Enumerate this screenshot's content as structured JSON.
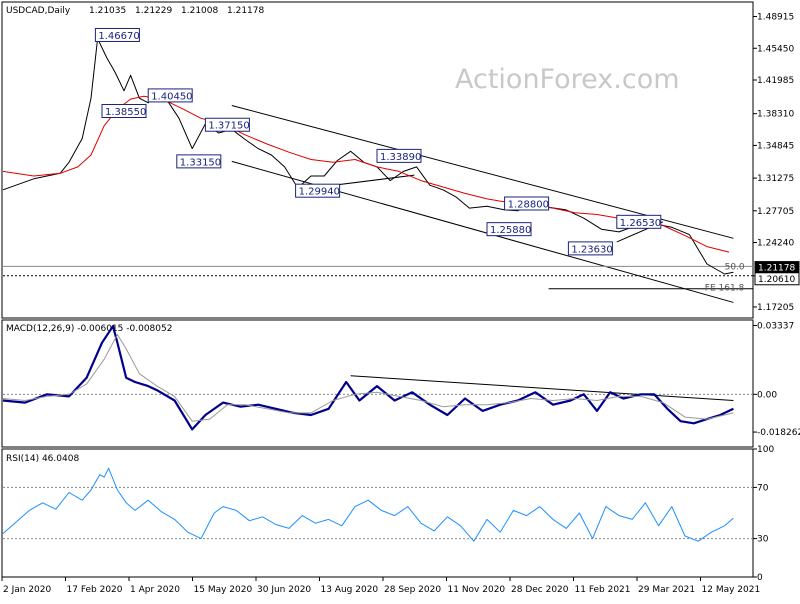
{
  "chart_data": [
    {
      "type": "line",
      "title": "USDCAD,Daily",
      "ohlc": [
        "1.21035",
        "1.21229",
        "1.21008",
        "1.21178"
      ],
      "watermark": "ActionForex.com",
      "x_ticks": [
        "2 Jan 2020",
        "17 Feb 2020",
        "1 Apr 2020",
        "15 May 2020",
        "30 Jun 2020",
        "13 Aug 2020",
        "28 Sep 2020",
        "11 Nov 2020",
        "28 Dec 2020",
        "11 Feb 2021",
        "29 Mar 2021",
        "12 May 2021"
      ],
      "y_ticks": [
        "1.48915",
        "1.45450",
        "1.41985",
        "1.38310",
        "1.34845",
        "1.31275",
        "1.27705",
        "1.24240",
        "1.20610",
        "1.17205"
      ],
      "ylim": [
        1.16,
        1.505
      ],
      "series": [
        {
          "name": "",
          "color": "#000000",
          "x": [
            0,
            14,
            26,
            30,
            36,
            40,
            43,
            47,
            51,
            55,
            58,
            62,
            66,
            70,
            74,
            80,
            86,
            92,
            98,
            104,
            110,
            116,
            122,
            128,
            134,
            140,
            146,
            152,
            158,
            164,
            170,
            176,
            182,
            188,
            194,
            200,
            206,
            212,
            220,
            228,
            234,
            240,
            248,
            256,
            264,
            272,
            280,
            288,
            296,
            304,
            312,
            320,
            328,
            332
          ],
          "y": [
            1.3,
            1.312,
            1.318,
            1.33,
            1.356,
            1.4,
            1.465,
            1.445,
            1.428,
            1.408,
            1.425,
            1.4,
            1.395,
            1.41,
            1.4,
            1.378,
            1.345,
            1.372,
            1.362,
            1.366,
            1.355,
            1.345,
            1.338,
            1.325,
            1.302,
            1.315,
            1.315,
            1.332,
            1.342,
            1.33,
            1.325,
            1.31,
            1.32,
            1.325,
            1.305,
            1.3,
            1.292,
            1.28,
            1.282,
            1.278,
            1.277,
            1.286,
            1.281,
            1.278,
            1.269,
            1.257,
            1.254,
            1.261,
            1.263,
            1.259,
            1.251,
            1.219,
            1.208,
            1.21
          ]
        },
        {
          "name": "",
          "color": "#e00000",
          "x": [
            0,
            14,
            26,
            34,
            40,
            46,
            52,
            58,
            64,
            70,
            76,
            82,
            90,
            100,
            110,
            120,
            130,
            140,
            150,
            160,
            170,
            180,
            190,
            200,
            210,
            220,
            230,
            240,
            250,
            260,
            270,
            280,
            290,
            300,
            310,
            320,
            330
          ],
          "y": [
            1.32,
            1.315,
            1.318,
            1.325,
            1.338,
            1.37,
            1.388,
            1.399,
            1.402,
            1.4,
            1.395,
            1.388,
            1.378,
            1.372,
            1.36,
            1.35,
            1.341,
            1.333,
            1.33,
            1.333,
            1.325,
            1.32,
            1.31,
            1.303,
            1.296,
            1.29,
            1.286,
            1.283,
            1.28,
            1.275,
            1.273,
            1.269,
            1.268,
            1.261,
            1.25,
            1.238,
            1.232
          ]
        }
      ],
      "trendlines": [
        {
          "x": [
            104,
            332
          ],
          "y": [
            1.392,
            1.247
          ]
        },
        {
          "x": [
            104,
            332
          ],
          "y": [
            1.331,
            1.177
          ]
        },
        {
          "x": [
            134,
            187
          ],
          "y": [
            1.3,
            1.316
          ]
        },
        {
          "x": [
            170,
            187
          ],
          "y": [
            1.343,
            1.339
          ]
        },
        {
          "x": [
            279,
            300
          ],
          "y": [
            1.243,
            1.265
          ]
        }
      ],
      "hlines": [
        {
          "y": 1.2163,
          "style": "solid",
          "color": "#888888"
        },
        {
          "y": 1.2061,
          "style": "dotted",
          "color": "#000000"
        },
        {
          "y": 1.192,
          "style": "solid",
          "color": "#000000",
          "x_from": 248
        }
      ],
      "level_labels": [
        {
          "text": "1.46670",
          "x": 42,
          "y": 1.469
        },
        {
          "text": "1.40450",
          "x": 66,
          "y": 1.403
        },
        {
          "text": "1.38550",
          "x": 45,
          "y": 1.386
        },
        {
          "text": "1.37150",
          "x": 92,
          "y": 1.371
        },
        {
          "text": "1.33150",
          "x": 79,
          "y": 1.331
        },
        {
          "text": "1.33890",
          "x": 170,
          "y": 1.337
        },
        {
          "text": "1.29940",
          "x": 133,
          "y": 1.299
        },
        {
          "text": "1.28800",
          "x": 228,
          "y": 1.285
        },
        {
          "text": "1.25880",
          "x": 220,
          "y": 1.257
        },
        {
          "text": "1.26530",
          "x": 279,
          "y": 1.265
        },
        {
          "text": "1.23630",
          "x": 257,
          "y": 1.236
        }
      ],
      "annotations": [
        {
          "text": "50.0",
          "x": 328,
          "y": 1.2163
        },
        {
          "text": "FE 161.8",
          "x": 319,
          "y": 1.1935
        }
      ],
      "price_tags": [
        {
          "text": "1.21178",
          "y": 1.21178,
          "bg": "#000000",
          "fg": "#ffffff"
        },
        {
          "text": "1.20610",
          "y": 1.2061,
          "bg": "#ffffff",
          "fg": "#000000"
        }
      ]
    },
    {
      "type": "line",
      "title": "MACD(12,26,9) -0.006015 -0.008052",
      "y_ticks": [
        "0.03337",
        "0.00",
        "-0.018262"
      ],
      "ylim": [
        -0.0255,
        0.036
      ],
      "series": [
        {
          "name": "",
          "color": "#00008b",
          "x": [
            0,
            10,
            20,
            30,
            38,
            45,
            50,
            52,
            56,
            60,
            66,
            70,
            78,
            86,
            92,
            100,
            108,
            116,
            124,
            132,
            140,
            148,
            156,
            162,
            170,
            178,
            186,
            194,
            202,
            210,
            218,
            226,
            234,
            242,
            250,
            258,
            264,
            270,
            276,
            282,
            290,
            296,
            302,
            308,
            314,
            320,
            326,
            332
          ],
          "y": [
            -0.003,
            -0.004,
            0.0,
            -0.001,
            0.008,
            0.025,
            0.033,
            0.025,
            0.008,
            0.006,
            0.004,
            0.002,
            -0.003,
            -0.017,
            -0.01,
            -0.004,
            -0.006,
            -0.005,
            -0.007,
            -0.009,
            -0.01,
            -0.007,
            0.006,
            -0.003,
            0.004,
            -0.003,
            0.001,
            -0.005,
            -0.01,
            -0.002,
            -0.008,
            -0.005,
            -0.003,
            0.001,
            -0.005,
            -0.003,
            0.0,
            -0.008,
            0.001,
            -0.002,
            0.0,
            0.0,
            -0.007,
            -0.013,
            -0.014,
            -0.012,
            -0.01,
            -0.007
          ]
        },
        {
          "name": "",
          "color": "#999999",
          "x": [
            0,
            10,
            20,
            30,
            38,
            46,
            52,
            56,
            62,
            70,
            78,
            86,
            94,
            102,
            110,
            120,
            130,
            140,
            150,
            160,
            170,
            180,
            190,
            200,
            210,
            220,
            230,
            240,
            250,
            260,
            270,
            280,
            290,
            300,
            310,
            320,
            332
          ],
          "y": [
            -0.002,
            -0.003,
            -0.001,
            0.0,
            0.005,
            0.017,
            0.029,
            0.022,
            0.01,
            0.004,
            -0.001,
            -0.013,
            -0.012,
            -0.005,
            -0.005,
            -0.007,
            -0.009,
            -0.009,
            -0.003,
            0.0,
            0.001,
            -0.001,
            -0.003,
            -0.006,
            -0.005,
            -0.005,
            -0.004,
            -0.002,
            -0.003,
            -0.002,
            -0.003,
            -0.001,
            -0.001,
            -0.004,
            -0.011,
            -0.012,
            -0.009
          ]
        }
      ],
      "trendlines": [
        {
          "x": [
            158,
            332
          ],
          "y": [
            0.009,
            -0.003
          ]
        }
      ],
      "hlines": [
        {
          "y": 0.0,
          "style": "dotted",
          "color": "#888888"
        }
      ]
    },
    {
      "type": "line",
      "title": "RSI(14) 46.0408",
      "y_ticks": [
        "100",
        "70",
        "30",
        "0"
      ],
      "ylim": [
        0,
        100
      ],
      "series": [
        {
          "name": "",
          "color": "#1e90ff",
          "x": [
            0,
            6,
            12,
            18,
            24,
            30,
            36,
            40,
            44,
            46,
            48,
            52,
            56,
            60,
            66,
            72,
            78,
            84,
            90,
            96,
            100,
            106,
            112,
            118,
            124,
            130,
            136,
            142,
            148,
            154,
            160,
            166,
            172,
            178,
            184,
            190,
            196,
            202,
            208,
            214,
            220,
            226,
            232,
            238,
            244,
            250,
            256,
            262,
            268,
            274,
            280,
            286,
            292,
            298,
            304,
            310,
            316,
            322,
            328,
            332
          ],
          "y": [
            34,
            43,
            52,
            58,
            53,
            66,
            60,
            68,
            80,
            78,
            85,
            68,
            58,
            52,
            60,
            51,
            45,
            35,
            30,
            50,
            55,
            52,
            44,
            47,
            41,
            38,
            48,
            42,
            45,
            40,
            55,
            60,
            52,
            48,
            55,
            42,
            36,
            47,
            40,
            28,
            45,
            35,
            52,
            48,
            55,
            45,
            38,
            50,
            30,
            55,
            48,
            45,
            58,
            40,
            55,
            32,
            28,
            35,
            40,
            46
          ]
        }
      ],
      "hlines": [
        {
          "y": 70,
          "style": "dotted",
          "color": "#888888"
        },
        {
          "y": 30,
          "style": "dotted",
          "color": "#888888"
        }
      ]
    }
  ]
}
